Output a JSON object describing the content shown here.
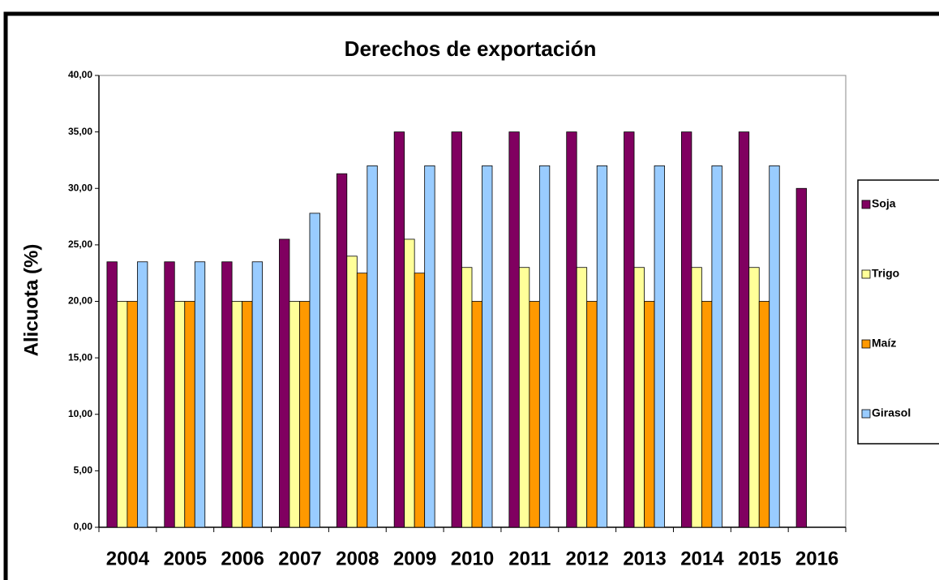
{
  "chart_data": {
    "type": "bar",
    "title": "Derechos de exportación",
    "y_label": "Alicuota (%)",
    "categories": [
      "2004",
      "2005",
      "2006",
      "2007",
      "2008",
      "2009",
      "2010",
      "2011",
      "2012",
      "2013",
      "2014",
      "2015",
      "2016"
    ],
    "series": [
      {
        "name": "Soja",
        "color": "#800060",
        "values": [
          23.5,
          23.5,
          23.5,
          25.5,
          31.3,
          35,
          35,
          35,
          35,
          35,
          35,
          35,
          30
        ]
      },
      {
        "name": "Trigo",
        "color": "#ffff99",
        "values": [
          20,
          20,
          20,
          20,
          24,
          25.5,
          23,
          23,
          23,
          23,
          23,
          23,
          null
        ]
      },
      {
        "name": "Maíz",
        "color": "#ff9900",
        "values": [
          20,
          20,
          20,
          20,
          22.5,
          22.5,
          20,
          20,
          20,
          20,
          20,
          20,
          null
        ]
      },
      {
        "name": "Girasol",
        "color": "#99ccff",
        "values": [
          23.5,
          23.5,
          23.5,
          27.8,
          32,
          32,
          32,
          32,
          32,
          32,
          32,
          32,
          null
        ]
      }
    ],
    "ylim": [
      0,
      40
    ],
    "yticks": [
      {
        "value": 0,
        "label": "0,00"
      },
      {
        "value": 5,
        "label": "5,00"
      },
      {
        "value": 10,
        "label": "10,00"
      },
      {
        "value": 15,
        "label": "15,00"
      },
      {
        "value": 20,
        "label": "20,00"
      },
      {
        "value": 25,
        "label": "25,00"
      },
      {
        "value": 30,
        "label": "30,00"
      },
      {
        "value": 35,
        "label": "35,00"
      },
      {
        "value": 40,
        "label": "40,00"
      }
    ],
    "legend": "right"
  }
}
